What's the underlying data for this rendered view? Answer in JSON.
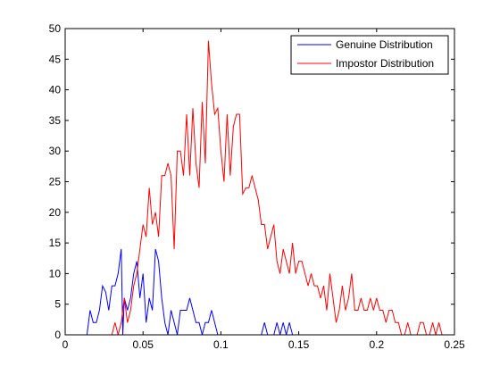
{
  "chart_data": {
    "type": "line",
    "title": "",
    "xlabel": "",
    "ylabel": "",
    "xlim": [
      0,
      0.25
    ],
    "ylim": [
      0,
      50
    ],
    "grid": false,
    "legend_position": "top-right",
    "x_ticks": [
      0,
      0.05,
      0.1,
      0.15,
      0.2,
      0.25
    ],
    "x_tick_labels": [
      "0",
      "0.05",
      "0.1",
      "0.15",
      "0.2",
      "0.25"
    ],
    "y_ticks": [
      0,
      5,
      10,
      15,
      20,
      25,
      30,
      35,
      40,
      45,
      50
    ],
    "y_tick_labels": [
      "0",
      "5",
      "10",
      "15",
      "20",
      "25",
      "30",
      "35",
      "40",
      "45",
      "50"
    ],
    "series": [
      {
        "name": "Genuine Distribution",
        "color": "#0000ff",
        "points": [
          [
            0.014,
            0
          ],
          [
            0.016,
            4
          ],
          [
            0.018,
            2
          ],
          [
            0.02,
            2
          ],
          [
            0.022,
            4
          ],
          [
            0.024,
            8
          ],
          [
            0.026,
            7
          ],
          [
            0.028,
            4
          ],
          [
            0.03,
            8
          ],
          [
            0.032,
            8
          ],
          [
            0.034,
            10
          ],
          [
            0.036,
            14
          ],
          [
            0.037,
            0
          ],
          [
            0.038,
            6
          ],
          [
            0.04,
            4
          ],
          [
            0.042,
            6
          ],
          [
            0.044,
            10
          ],
          [
            0.046,
            12
          ],
          [
            0.048,
            6
          ],
          [
            0.05,
            10
          ],
          [
            0.052,
            2
          ],
          [
            0.054,
            6
          ],
          [
            0.056,
            4
          ],
          [
            0.058,
            14
          ],
          [
            0.06,
            12
          ],
          [
            0.062,
            6
          ],
          [
            0.064,
            2
          ],
          [
            0.066,
            0
          ],
          [
            0.068,
            4
          ],
          [
            0.07,
            2
          ],
          [
            0.072,
            0
          ],
          [
            0.074,
            4
          ],
          [
            0.076,
            4
          ],
          [
            0.078,
            4
          ],
          [
            0.08,
            6
          ],
          [
            0.082,
            4
          ],
          [
            0.084,
            2
          ],
          [
            0.086,
            2
          ],
          [
            0.088,
            0
          ],
          [
            0.09,
            2
          ],
          [
            0.092,
            2
          ],
          [
            0.094,
            4
          ],
          [
            0.096,
            2
          ],
          [
            0.098,
            0
          ],
          [
            0.1,
            0
          ],
          [
            0.11,
            0
          ],
          [
            0.12,
            0
          ],
          [
            0.126,
            0
          ],
          [
            0.128,
            2
          ],
          [
            0.13,
            0
          ],
          [
            0.134,
            0
          ],
          [
            0.136,
            2
          ],
          [
            0.138,
            0
          ],
          [
            0.14,
            2
          ],
          [
            0.142,
            0
          ],
          [
            0.144,
            2
          ],
          [
            0.146,
            0
          ],
          [
            0.148,
            0
          ]
        ]
      },
      {
        "name": "Impostor Distribution",
        "color": "#ff0000",
        "points": [
          [
            0.028,
            0
          ],
          [
            0.03,
            0
          ],
          [
            0.032,
            2
          ],
          [
            0.034,
            0
          ],
          [
            0.036,
            2
          ],
          [
            0.038,
            6
          ],
          [
            0.04,
            2
          ],
          [
            0.042,
            4
          ],
          [
            0.044,
            8
          ],
          [
            0.046,
            10
          ],
          [
            0.048,
            14
          ],
          [
            0.05,
            18
          ],
          [
            0.052,
            16
          ],
          [
            0.054,
            24
          ],
          [
            0.056,
            18
          ],
          [
            0.058,
            20
          ],
          [
            0.06,
            16
          ],
          [
            0.062,
            26
          ],
          [
            0.064,
            26
          ],
          [
            0.066,
            28
          ],
          [
            0.068,
            26
          ],
          [
            0.07,
            14
          ],
          [
            0.072,
            30
          ],
          [
            0.074,
            30
          ],
          [
            0.076,
            26
          ],
          [
            0.078,
            36
          ],
          [
            0.08,
            26
          ],
          [
            0.082,
            37
          ],
          [
            0.084,
            28
          ],
          [
            0.086,
            24
          ],
          [
            0.088,
            38
          ],
          [
            0.09,
            28
          ],
          [
            0.092,
            48
          ],
          [
            0.094,
            41
          ],
          [
            0.096,
            36
          ],
          [
            0.098,
            37
          ],
          [
            0.1,
            30
          ],
          [
            0.102,
            25
          ],
          [
            0.104,
            36
          ],
          [
            0.106,
            26
          ],
          [
            0.108,
            34
          ],
          [
            0.11,
            36
          ],
          [
            0.112,
            36
          ],
          [
            0.114,
            23
          ],
          [
            0.116,
            24
          ],
          [
            0.118,
            24
          ],
          [
            0.12,
            26
          ],
          [
            0.122,
            24
          ],
          [
            0.124,
            22
          ],
          [
            0.126,
            18
          ],
          [
            0.128,
            18
          ],
          [
            0.13,
            14
          ],
          [
            0.132,
            16
          ],
          [
            0.134,
            18
          ],
          [
            0.136,
            12
          ],
          [
            0.138,
            10
          ],
          [
            0.14,
            14
          ],
          [
            0.142,
            12
          ],
          [
            0.144,
            10
          ],
          [
            0.146,
            15
          ],
          [
            0.148,
            10
          ],
          [
            0.15,
            12
          ],
          [
            0.152,
            12
          ],
          [
            0.154,
            10
          ],
          [
            0.156,
            8
          ],
          [
            0.158,
            10
          ],
          [
            0.16,
            8
          ],
          [
            0.162,
            8
          ],
          [
            0.164,
            6
          ],
          [
            0.166,
            8
          ],
          [
            0.168,
            4
          ],
          [
            0.17,
            10
          ],
          [
            0.172,
            6
          ],
          [
            0.174,
            2
          ],
          [
            0.176,
            4
          ],
          [
            0.178,
            8
          ],
          [
            0.18,
            4
          ],
          [
            0.182,
            6
          ],
          [
            0.184,
            10
          ],
          [
            0.186,
            4
          ],
          [
            0.188,
            4
          ],
          [
            0.19,
            6
          ],
          [
            0.192,
            4
          ],
          [
            0.194,
            4
          ],
          [
            0.196,
            6
          ],
          [
            0.198,
            4
          ],
          [
            0.2,
            6
          ],
          [
            0.202,
            4
          ],
          [
            0.204,
            4
          ],
          [
            0.206,
            2
          ],
          [
            0.208,
            4
          ],
          [
            0.21,
            4
          ],
          [
            0.212,
            2
          ],
          [
            0.214,
            2
          ],
          [
            0.216,
            0
          ],
          [
            0.218,
            0
          ],
          [
            0.22,
            2
          ],
          [
            0.222,
            0
          ],
          [
            0.224,
            0
          ],
          [
            0.226,
            0
          ],
          [
            0.228,
            2
          ],
          [
            0.23,
            2
          ],
          [
            0.232,
            0
          ],
          [
            0.234,
            0
          ],
          [
            0.236,
            2
          ],
          [
            0.238,
            0
          ],
          [
            0.24,
            2
          ],
          [
            0.242,
            0
          ],
          [
            0.244,
            0
          ],
          [
            0.246,
            0
          ],
          [
            0.248,
            0
          ]
        ]
      }
    ]
  }
}
